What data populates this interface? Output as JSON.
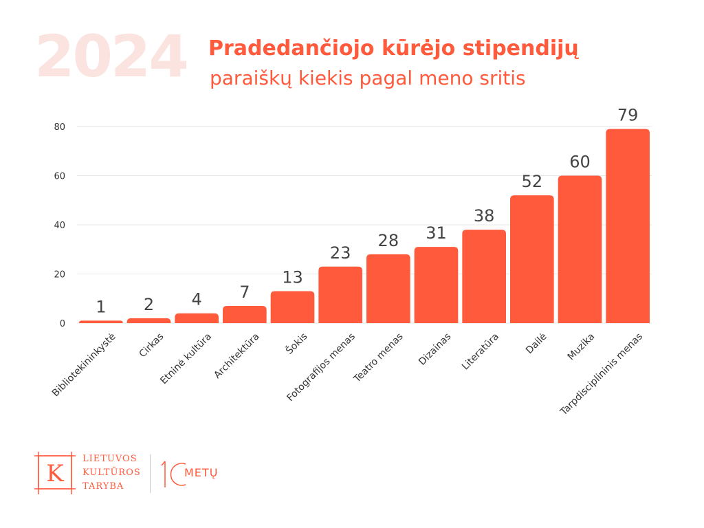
{
  "header": {
    "year": "2024",
    "title": "Pradedančiojo kūrėjo stipendijų",
    "subtitle": "paraiškų kiekis pagal meno sritis"
  },
  "colors": {
    "bar": "#ff5a3c",
    "year": "#fbe3df",
    "grid": "#e6e6e6",
    "tick_text": "#333333",
    "value_text": "#444444"
  },
  "chart_data": {
    "type": "bar",
    "title": "Pradedančiojo kūrėjo stipendijų paraiškų kiekis pagal meno sritis",
    "xlabel": "",
    "ylabel": "",
    "categories": [
      "Bibliotekininkystė",
      "Cirkas",
      "Etninė kultūra",
      "Architektūra",
      "Šokis",
      "Fotografijos menas",
      "Teatro menas",
      "Dizainas",
      "Literatūra",
      "Dailė",
      "Muzika",
      "Tarpdisciplininis menas"
    ],
    "values": [
      1,
      2,
      4,
      7,
      13,
      23,
      28,
      31,
      38,
      52,
      60,
      79
    ],
    "ylim": [
      0,
      80
    ],
    "yticks": [
      0,
      20,
      40,
      60,
      80
    ],
    "grid": true,
    "legend": "none",
    "data_labels": true
  },
  "footer": {
    "logo_letter": "K",
    "org_lines": [
      "LIETUVOS",
      "KULTŪROS",
      "TARYBA"
    ],
    "anniversary_number": "10",
    "anniversary_word": "METŲ"
  }
}
